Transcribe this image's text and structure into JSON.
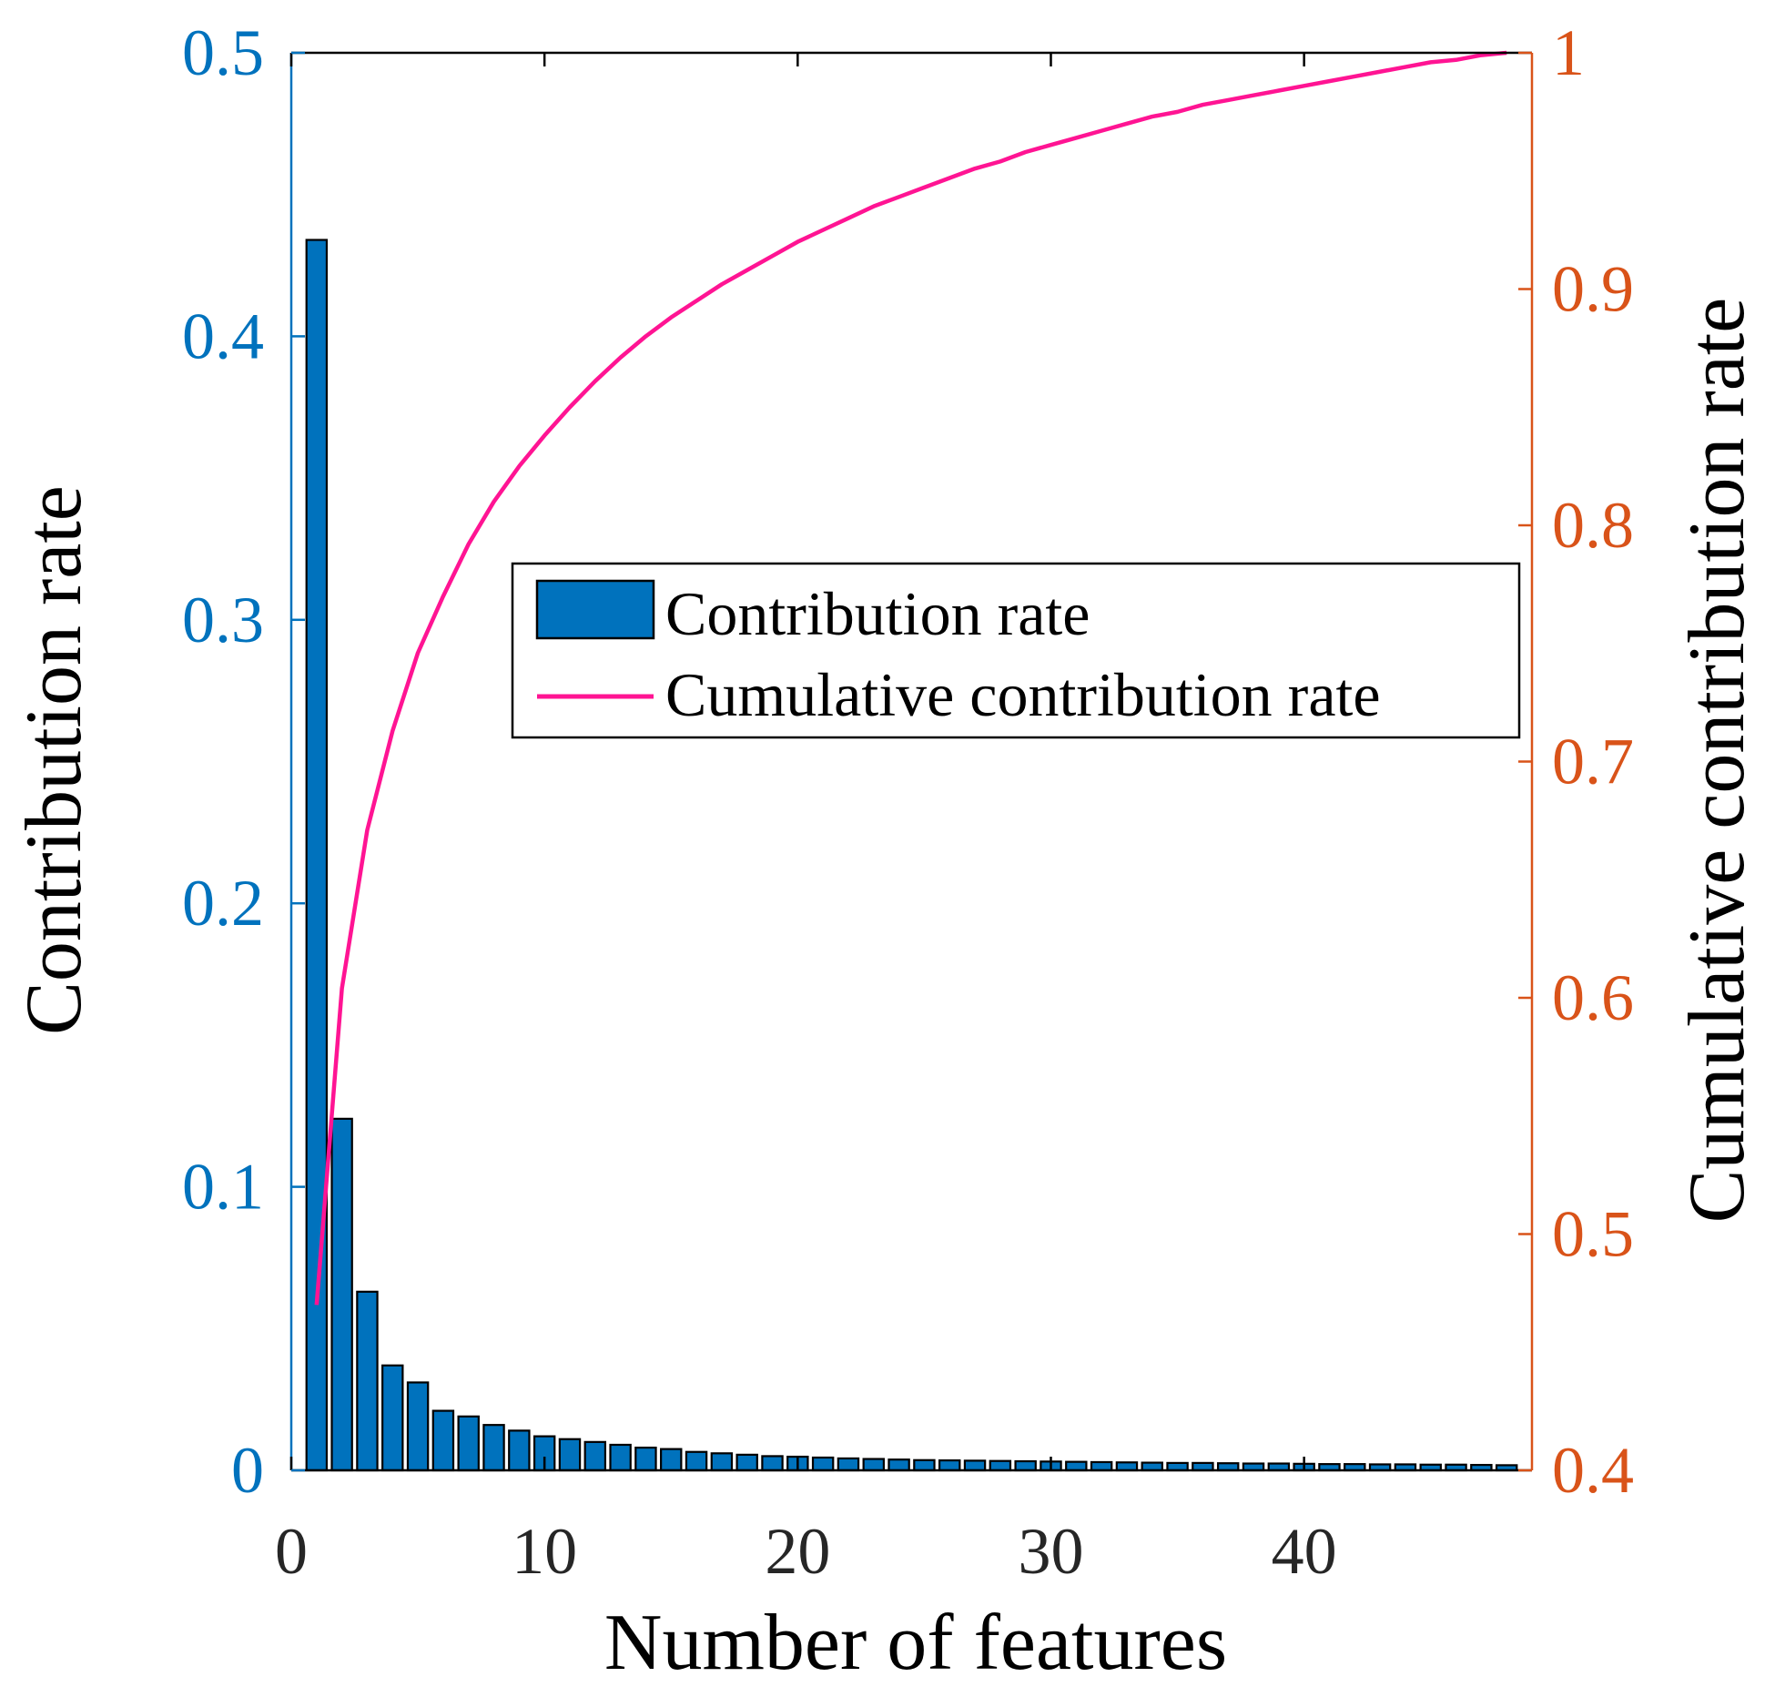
{
  "colors": {
    "bar_fill": "#0072BD",
    "bar_edge": "#000000",
    "line": "#FF1493",
    "left_axis": "#0072BD",
    "right_axis": "#D95319",
    "frame": "#000000"
  },
  "chart_data": {
    "type": "bar",
    "xlabel": "Number of features",
    "ylabel_left": "Contribution rate",
    "ylabel_right": "Cumulative contribution rate",
    "xlim": [
      0,
      49
    ],
    "x_ticks": [
      0,
      10,
      20,
      30,
      40
    ],
    "x_tick_labels": [
      "0",
      "10",
      "20",
      "30",
      "40"
    ],
    "ylim_left": [
      0,
      0.5
    ],
    "y_ticks_left": [
      0,
      0.1,
      0.2,
      0.3,
      0.4,
      0.5
    ],
    "y_tick_labels_left": [
      "0",
      "0.1",
      "0.2",
      "0.3",
      "0.4",
      "0.5"
    ],
    "ylim_right": [
      0.4,
      1
    ],
    "y_ticks_right": [
      0.4,
      0.5,
      0.6,
      0.7,
      0.8,
      0.9,
      1
    ],
    "y_tick_labels_right": [
      "0.4",
      "0.5",
      "0.6",
      "0.7",
      "0.8",
      "0.9",
      "1"
    ],
    "grid": false,
    "legend": {
      "position": "center-right",
      "entries": [
        "Contribution rate",
        "Cumulative contribution rate"
      ]
    },
    "series": [
      {
        "name": "Contribution rate",
        "type": "bar",
        "axis": "left",
        "x": [
          1,
          2,
          3,
          4,
          5,
          6,
          7,
          8,
          9,
          10,
          11,
          12,
          13,
          14,
          15,
          16,
          17,
          18,
          19,
          20,
          21,
          22,
          23,
          24,
          25,
          26,
          27,
          28,
          29,
          30,
          31,
          32,
          33,
          34,
          35,
          36,
          37,
          38,
          39,
          40,
          41,
          42,
          43,
          44,
          45,
          46,
          47,
          48
        ],
        "values": [
          0.434,
          0.124,
          0.063,
          0.037,
          0.031,
          0.021,
          0.019,
          0.016,
          0.014,
          0.012,
          0.011,
          0.01,
          0.009,
          0.008,
          0.0075,
          0.0065,
          0.006,
          0.0055,
          0.005,
          0.0048,
          0.0045,
          0.0042,
          0.004,
          0.0038,
          0.0036,
          0.0035,
          0.0034,
          0.0033,
          0.0032,
          0.0031,
          0.003,
          0.0029,
          0.0028,
          0.0027,
          0.0026,
          0.0026,
          0.0025,
          0.0024,
          0.0024,
          0.0023,
          0.0022,
          0.0022,
          0.0021,
          0.0021,
          0.002,
          0.002,
          0.0019,
          0.0018
        ]
      },
      {
        "name": "Cumulative contribution rate",
        "type": "line",
        "axis": "right",
        "x": [
          1,
          2,
          3,
          4,
          5,
          6,
          7,
          8,
          9,
          10,
          11,
          12,
          13,
          14,
          15,
          16,
          17,
          18,
          19,
          20,
          21,
          22,
          23,
          24,
          25,
          26,
          27,
          28,
          29,
          30,
          31,
          32,
          33,
          34,
          35,
          36,
          37,
          38,
          39,
          40,
          41,
          42,
          43,
          44,
          45,
          46,
          47,
          48
        ],
        "values": [
          0.47,
          0.604,
          0.671,
          0.713,
          0.746,
          0.77,
          0.792,
          0.81,
          0.825,
          0.838,
          0.85,
          0.861,
          0.871,
          0.88,
          0.888,
          0.895,
          0.902,
          0.908,
          0.914,
          0.92,
          0.925,
          0.93,
          0.935,
          0.939,
          0.943,
          0.947,
          0.951,
          0.954,
          0.958,
          0.961,
          0.964,
          0.967,
          0.97,
          0.973,
          0.975,
          0.978,
          0.98,
          0.982,
          0.984,
          0.986,
          0.988,
          0.99,
          0.992,
          0.994,
          0.996,
          0.997,
          0.999,
          1.0
        ]
      }
    ]
  }
}
